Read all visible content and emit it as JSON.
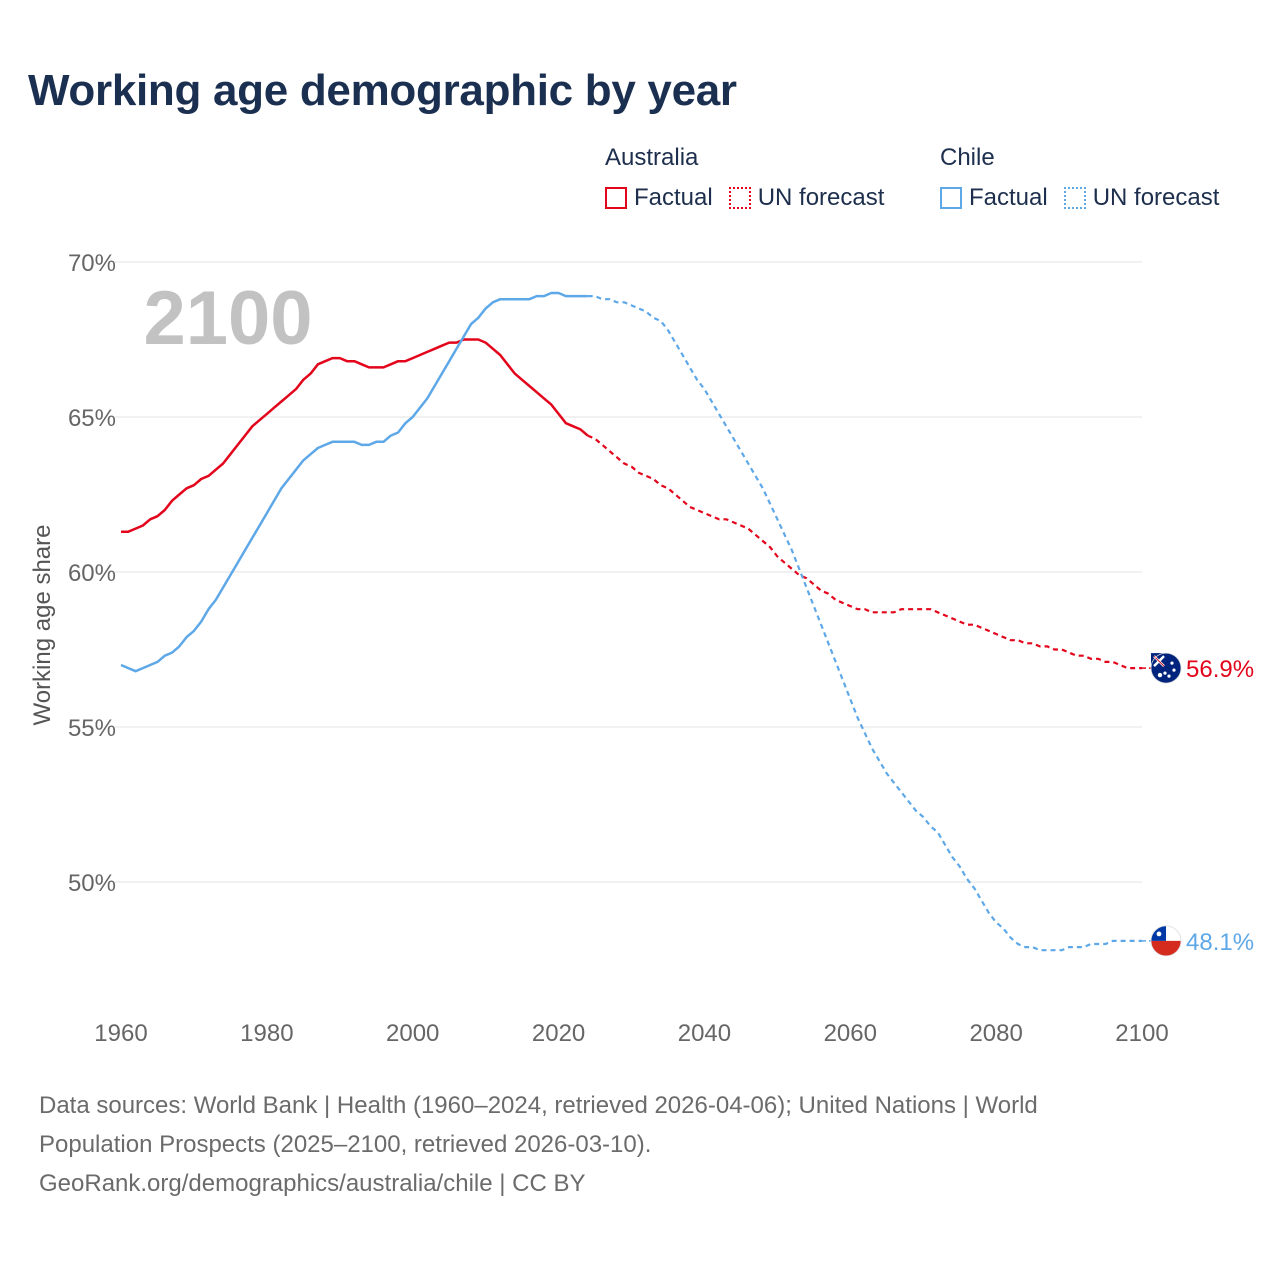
{
  "title": "Working age demographic by year",
  "year_watermark": "2100",
  "legend": {
    "groups": [
      {
        "name": "Australia",
        "color": "#e3051b",
        "factual_label": "Factual",
        "forecast_label": "UN forecast"
      },
      {
        "name": "Chile",
        "color": "#5ea8e8",
        "factual_label": "Factual",
        "forecast_label": "UN forecast"
      }
    ]
  },
  "source": {
    "line1": "Data sources: World Bank | Health (1960–2024, retrieved 2026-04-06); United Nations | World",
    "line2": "Population Prospects (2025–2100, retrieved 2026-03-10).",
    "line3": "GeoRank.org/demographics/australia/chile | CC BY"
  },
  "chart_data": {
    "type": "line",
    "title": "Working age demographic by year",
    "xlabel": "",
    "ylabel": "Working age share",
    "xlim": [
      1960,
      2100
    ],
    "ylim": [
      46.5,
      70
    ],
    "y_ticks": [
      50,
      55,
      60,
      65,
      70
    ],
    "y_tick_labels": [
      "50%",
      "55%",
      "60%",
      "65%",
      "70%"
    ],
    "x_ticks": [
      1960,
      1980,
      2000,
      2020,
      2040,
      2060,
      2080,
      2100
    ],
    "x_tick_labels": [
      "1960",
      "1980",
      "2000",
      "2020",
      "2040",
      "2060",
      "2080",
      "2100"
    ],
    "grid": true,
    "series": [
      {
        "name": "Australia",
        "color": "#e3051b",
        "end_label": "56.9%",
        "factual": [
          [
            1960,
            61.3
          ],
          [
            1961,
            61.3
          ],
          [
            1962,
            61.4
          ],
          [
            1963,
            61.5
          ],
          [
            1964,
            61.7
          ],
          [
            1965,
            61.8
          ],
          [
            1966,
            62.0
          ],
          [
            1967,
            62.3
          ],
          [
            1968,
            62.5
          ],
          [
            1969,
            62.7
          ],
          [
            1970,
            62.8
          ],
          [
            1971,
            63.0
          ],
          [
            1972,
            63.1
          ],
          [
            1973,
            63.3
          ],
          [
            1974,
            63.5
          ],
          [
            1975,
            63.8
          ],
          [
            1976,
            64.1
          ],
          [
            1977,
            64.4
          ],
          [
            1978,
            64.7
          ],
          [
            1979,
            64.9
          ],
          [
            1980,
            65.1
          ],
          [
            1981,
            65.3
          ],
          [
            1982,
            65.5
          ],
          [
            1983,
            65.7
          ],
          [
            1984,
            65.9
          ],
          [
            1985,
            66.2
          ],
          [
            1986,
            66.4
          ],
          [
            1987,
            66.7
          ],
          [
            1988,
            66.8
          ],
          [
            1989,
            66.9
          ],
          [
            1990,
            66.9
          ],
          [
            1991,
            66.8
          ],
          [
            1992,
            66.8
          ],
          [
            1993,
            66.7
          ],
          [
            1994,
            66.6
          ],
          [
            1995,
            66.6
          ],
          [
            1996,
            66.6
          ],
          [
            1997,
            66.7
          ],
          [
            1998,
            66.8
          ],
          [
            1999,
            66.8
          ],
          [
            2000,
            66.9
          ],
          [
            2001,
            67.0
          ],
          [
            2002,
            67.1
          ],
          [
            2003,
            67.2
          ],
          [
            2004,
            67.3
          ],
          [
            2005,
            67.4
          ],
          [
            2006,
            67.4
          ],
          [
            2007,
            67.5
          ],
          [
            2008,
            67.5
          ],
          [
            2009,
            67.5
          ],
          [
            2010,
            67.4
          ],
          [
            2011,
            67.2
          ],
          [
            2012,
            67.0
          ],
          [
            2013,
            66.7
          ],
          [
            2014,
            66.4
          ],
          [
            2015,
            66.2
          ],
          [
            2016,
            66.0
          ],
          [
            2017,
            65.8
          ],
          [
            2018,
            65.6
          ],
          [
            2019,
            65.4
          ],
          [
            2020,
            65.1
          ],
          [
            2021,
            64.8
          ],
          [
            2022,
            64.7
          ],
          [
            2023,
            64.6
          ],
          [
            2024,
            64.4
          ]
        ],
        "forecast": [
          [
            2024,
            64.4
          ],
          [
            2025,
            64.3
          ],
          [
            2026,
            64.1
          ],
          [
            2027,
            63.9
          ],
          [
            2028,
            63.7
          ],
          [
            2029,
            63.5
          ],
          [
            2030,
            63.4
          ],
          [
            2031,
            63.2
          ],
          [
            2032,
            63.1
          ],
          [
            2033,
            63.0
          ],
          [
            2034,
            62.8
          ],
          [
            2035,
            62.7
          ],
          [
            2036,
            62.5
          ],
          [
            2037,
            62.3
          ],
          [
            2038,
            62.1
          ],
          [
            2039,
            62.0
          ],
          [
            2040,
            61.9
          ],
          [
            2041,
            61.8
          ],
          [
            2042,
            61.7
          ],
          [
            2043,
            61.7
          ],
          [
            2044,
            61.6
          ],
          [
            2045,
            61.5
          ],
          [
            2046,
            61.4
          ],
          [
            2047,
            61.2
          ],
          [
            2048,
            61.0
          ],
          [
            2049,
            60.8
          ],
          [
            2050,
            60.5
          ],
          [
            2051,
            60.3
          ],
          [
            2052,
            60.1
          ],
          [
            2053,
            59.9
          ],
          [
            2054,
            59.8
          ],
          [
            2055,
            59.6
          ],
          [
            2056,
            59.4
          ],
          [
            2057,
            59.3
          ],
          [
            2058,
            59.1
          ],
          [
            2059,
            59.0
          ],
          [
            2060,
            58.9
          ],
          [
            2061,
            58.8
          ],
          [
            2062,
            58.8
          ],
          [
            2063,
            58.7
          ],
          [
            2064,
            58.7
          ],
          [
            2065,
            58.7
          ],
          [
            2066,
            58.7
          ],
          [
            2067,
            58.8
          ],
          [
            2068,
            58.8
          ],
          [
            2069,
            58.8
          ],
          [
            2070,
            58.8
          ],
          [
            2071,
            58.8
          ],
          [
            2072,
            58.7
          ],
          [
            2073,
            58.6
          ],
          [
            2074,
            58.5
          ],
          [
            2075,
            58.4
          ],
          [
            2076,
            58.3
          ],
          [
            2077,
            58.3
          ],
          [
            2078,
            58.2
          ],
          [
            2079,
            58.1
          ],
          [
            2080,
            58.0
          ],
          [
            2081,
            57.9
          ],
          [
            2082,
            57.8
          ],
          [
            2083,
            57.8
          ],
          [
            2084,
            57.7
          ],
          [
            2085,
            57.7
          ],
          [
            2086,
            57.6
          ],
          [
            2087,
            57.6
          ],
          [
            2088,
            57.5
          ],
          [
            2089,
            57.5
          ],
          [
            2090,
            57.4
          ],
          [
            2091,
            57.3
          ],
          [
            2092,
            57.3
          ],
          [
            2093,
            57.2
          ],
          [
            2094,
            57.2
          ],
          [
            2095,
            57.1
          ],
          [
            2096,
            57.1
          ],
          [
            2097,
            57.0
          ],
          [
            2098,
            56.9
          ],
          [
            2099,
            56.9
          ],
          [
            2100,
            56.9
          ]
        ]
      },
      {
        "name": "Chile",
        "color": "#5ea8e8",
        "end_label": "48.1%",
        "factual": [
          [
            1960,
            57.0
          ],
          [
            1961,
            56.9
          ],
          [
            1962,
            56.8
          ],
          [
            1963,
            56.9
          ],
          [
            1964,
            57.0
          ],
          [
            1965,
            57.1
          ],
          [
            1966,
            57.3
          ],
          [
            1967,
            57.4
          ],
          [
            1968,
            57.6
          ],
          [
            1969,
            57.9
          ],
          [
            1970,
            58.1
          ],
          [
            1971,
            58.4
          ],
          [
            1972,
            58.8
          ],
          [
            1973,
            59.1
          ],
          [
            1974,
            59.5
          ],
          [
            1975,
            59.9
          ],
          [
            1976,
            60.3
          ],
          [
            1977,
            60.7
          ],
          [
            1978,
            61.1
          ],
          [
            1979,
            61.5
          ],
          [
            1980,
            61.9
          ],
          [
            1981,
            62.3
          ],
          [
            1982,
            62.7
          ],
          [
            1983,
            63.0
          ],
          [
            1984,
            63.3
          ],
          [
            1985,
            63.6
          ],
          [
            1986,
            63.8
          ],
          [
            1987,
            64.0
          ],
          [
            1988,
            64.1
          ],
          [
            1989,
            64.2
          ],
          [
            1990,
            64.2
          ],
          [
            1991,
            64.2
          ],
          [
            1992,
            64.2
          ],
          [
            1993,
            64.1
          ],
          [
            1994,
            64.1
          ],
          [
            1995,
            64.2
          ],
          [
            1996,
            64.2
          ],
          [
            1997,
            64.4
          ],
          [
            1998,
            64.5
          ],
          [
            1999,
            64.8
          ],
          [
            2000,
            65.0
          ],
          [
            2001,
            65.3
          ],
          [
            2002,
            65.6
          ],
          [
            2003,
            66.0
          ],
          [
            2004,
            66.4
          ],
          [
            2005,
            66.8
          ],
          [
            2006,
            67.2
          ],
          [
            2007,
            67.6
          ],
          [
            2008,
            68.0
          ],
          [
            2009,
            68.2
          ],
          [
            2010,
            68.5
          ],
          [
            2011,
            68.7
          ],
          [
            2012,
            68.8
          ],
          [
            2013,
            68.8
          ],
          [
            2014,
            68.8
          ],
          [
            2015,
            68.8
          ],
          [
            2016,
            68.8
          ],
          [
            2017,
            68.9
          ],
          [
            2018,
            68.9
          ],
          [
            2019,
            69.0
          ],
          [
            2020,
            69.0
          ],
          [
            2021,
            68.9
          ],
          [
            2022,
            68.9
          ],
          [
            2023,
            68.9
          ],
          [
            2024,
            68.9
          ]
        ],
        "forecast": [
          [
            2024,
            68.9
          ],
          [
            2025,
            68.9
          ],
          [
            2026,
            68.8
          ],
          [
            2027,
            68.8
          ],
          [
            2028,
            68.7
          ],
          [
            2029,
            68.7
          ],
          [
            2030,
            68.6
          ],
          [
            2031,
            68.5
          ],
          [
            2032,
            68.4
          ],
          [
            2033,
            68.2
          ],
          [
            2034,
            68.1
          ],
          [
            2035,
            67.8
          ],
          [
            2036,
            67.4
          ],
          [
            2037,
            67.0
          ],
          [
            2038,
            66.6
          ],
          [
            2039,
            66.2
          ],
          [
            2040,
            65.9
          ],
          [
            2041,
            65.5
          ],
          [
            2042,
            65.1
          ],
          [
            2043,
            64.7
          ],
          [
            2044,
            64.3
          ],
          [
            2045,
            63.9
          ],
          [
            2046,
            63.5
          ],
          [
            2047,
            63.1
          ],
          [
            2048,
            62.7
          ],
          [
            2049,
            62.2
          ],
          [
            2050,
            61.7
          ],
          [
            2051,
            61.2
          ],
          [
            2052,
            60.7
          ],
          [
            2053,
            60.1
          ],
          [
            2054,
            59.5
          ],
          [
            2055,
            58.9
          ],
          [
            2056,
            58.3
          ],
          [
            2057,
            57.7
          ],
          [
            2058,
            57.1
          ],
          [
            2059,
            56.5
          ],
          [
            2060,
            55.9
          ],
          [
            2061,
            55.3
          ],
          [
            2062,
            54.8
          ],
          [
            2063,
            54.3
          ],
          [
            2064,
            53.9
          ],
          [
            2065,
            53.5
          ],
          [
            2066,
            53.2
          ],
          [
            2067,
            52.9
          ],
          [
            2068,
            52.6
          ],
          [
            2069,
            52.3
          ],
          [
            2070,
            52.1
          ],
          [
            2071,
            51.8
          ],
          [
            2072,
            51.6
          ],
          [
            2073,
            51.2
          ],
          [
            2074,
            50.8
          ],
          [
            2075,
            50.5
          ],
          [
            2076,
            50.1
          ],
          [
            2077,
            49.8
          ],
          [
            2078,
            49.4
          ],
          [
            2079,
            49.0
          ],
          [
            2080,
            48.7
          ],
          [
            2081,
            48.5
          ],
          [
            2082,
            48.2
          ],
          [
            2083,
            48.0
          ],
          [
            2084,
            47.9
          ],
          [
            2085,
            47.9
          ],
          [
            2086,
            47.8
          ],
          [
            2087,
            47.8
          ],
          [
            2088,
            47.8
          ],
          [
            2089,
            47.8
          ],
          [
            2090,
            47.9
          ],
          [
            2091,
            47.9
          ],
          [
            2092,
            47.9
          ],
          [
            2093,
            48.0
          ],
          [
            2094,
            48.0
          ],
          [
            2095,
            48.0
          ],
          [
            2096,
            48.1
          ],
          [
            2097,
            48.1
          ],
          [
            2098,
            48.1
          ],
          [
            2099,
            48.1
          ],
          [
            2100,
            48.1
          ]
        ]
      }
    ]
  }
}
